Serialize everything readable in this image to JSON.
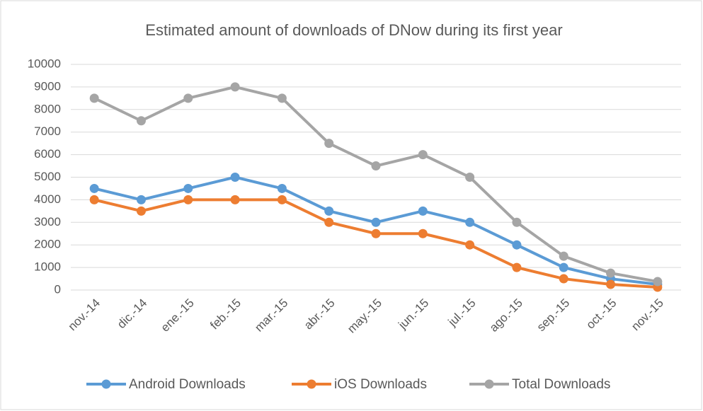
{
  "chart_data": {
    "type": "line",
    "title": "Estimated amount of downloads of DNow during its first year",
    "categories": [
      "nov.-14",
      "dic.-14",
      "ene.-15",
      "feb.-15",
      "mar.-15",
      "abr.-15",
      "may.-15",
      "jun.-15",
      "jul.-15",
      "ago.-15",
      "sep.-15",
      "oct.-15",
      "nov.-15"
    ],
    "series": [
      {
        "name": "Android Downloads",
        "color": "#5b9bd5",
        "values": [
          4500,
          4000,
          4500,
          5000,
          4500,
          3500,
          3000,
          3500,
          3000,
          2000,
          1000,
          500,
          250
        ]
      },
      {
        "name": "iOS Downloads",
        "color": "#ed7d31",
        "values": [
          4000,
          3500,
          4000,
          4000,
          4000,
          3000,
          2500,
          2500,
          2000,
          1000,
          500,
          250,
          125
        ]
      },
      {
        "name": "Total Downloads",
        "color": "#a5a5a5",
        "values": [
          8500,
          7500,
          8500,
          9000,
          8500,
          6500,
          5500,
          6000,
          5000,
          3000,
          1500,
          750,
          375
        ]
      }
    ],
    "ylim": [
      0,
      10000
    ],
    "yticks": [
      0,
      1000,
      2000,
      3000,
      4000,
      5000,
      6000,
      7000,
      8000,
      9000,
      10000
    ],
    "grid": true,
    "legend": "bottom"
  }
}
